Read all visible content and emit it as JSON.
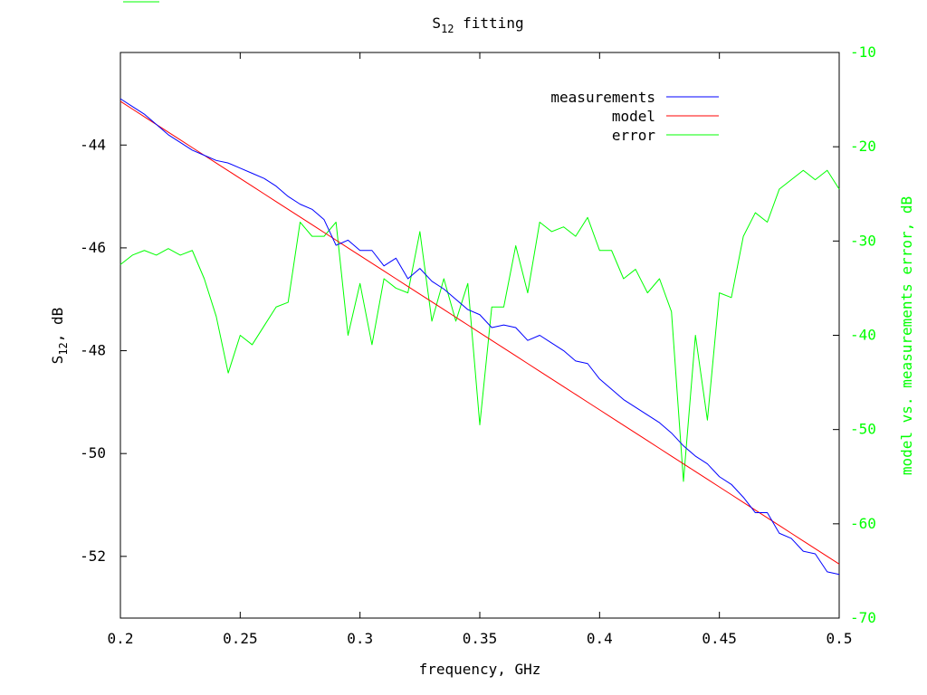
{
  "chart_data": {
    "type": "line",
    "title_main": "S",
    "title_sub": "12",
    "title_rest": " fitting",
    "xlabel": "frequency, GHz",
    "ylabel_main": "S",
    "ylabel_sub": "12",
    "ylabel_rest": ", dB",
    "y2label": "model vs. measurements error, dB",
    "xlim": [
      0.2,
      0.5
    ],
    "ylim": [
      -53.2,
      -42.2
    ],
    "y2lim": [
      -70,
      -10
    ],
    "x_ticks": [
      0.2,
      0.25,
      0.3,
      0.35,
      0.4,
      0.45,
      0.5
    ],
    "x_tick_labels": [
      "0.2",
      "0.25",
      "0.3",
      "0.35",
      "0.4",
      "0.45",
      "0.5"
    ],
    "y_ticks": [
      -44,
      -46,
      -48,
      -50,
      -52
    ],
    "y_tick_labels": [
      "-44",
      "-46",
      "-48",
      "-50",
      "-52"
    ],
    "y2_ticks": [
      -10,
      -20,
      -30,
      -40,
      -50,
      -60,
      -70
    ],
    "y2_tick_labels": [
      "-10",
      "-20",
      "-30",
      "-40",
      "-50",
      "-60",
      "-70"
    ],
    "legend_position": "top-right",
    "grid": false,
    "colors": {
      "measurements": "#0000ff",
      "model": "#ff0000",
      "error": "#00ff00",
      "axes": "#000000",
      "y2_axis": "#00ff00"
    },
    "x": [
      0.2,
      0.205,
      0.21,
      0.215,
      0.22,
      0.225,
      0.23,
      0.235,
      0.24,
      0.245,
      0.25,
      0.255,
      0.26,
      0.265,
      0.27,
      0.275,
      0.28,
      0.285,
      0.29,
      0.295,
      0.3,
      0.305,
      0.31,
      0.315,
      0.32,
      0.325,
      0.33,
      0.335,
      0.34,
      0.345,
      0.35,
      0.355,
      0.36,
      0.365,
      0.37,
      0.375,
      0.38,
      0.385,
      0.39,
      0.395,
      0.4,
      0.405,
      0.41,
      0.415,
      0.42,
      0.425,
      0.43,
      0.435,
      0.44,
      0.445,
      0.45,
      0.455,
      0.46,
      0.465,
      0.47,
      0.475,
      0.48,
      0.485,
      0.49,
      0.495,
      0.5
    ],
    "series": [
      {
        "name": "measurements",
        "axis": "y",
        "values": [
          -43.1,
          -43.25,
          -43.4,
          -43.6,
          -43.8,
          -43.95,
          -44.1,
          -44.2,
          -44.3,
          -44.35,
          -44.45,
          -44.55,
          -44.65,
          -44.8,
          -45.0,
          -45.15,
          -45.25,
          -45.45,
          -45.95,
          -45.85,
          -46.05,
          -46.05,
          -46.35,
          -46.2,
          -46.6,
          -46.4,
          -46.65,
          -46.8,
          -47.0,
          -47.2,
          -47.3,
          -47.55,
          -47.5,
          -47.55,
          -47.8,
          -47.7,
          -47.85,
          -48.0,
          -48.2,
          -48.25,
          -48.55,
          -48.75,
          -48.95,
          -49.1,
          -49.25,
          -49.4,
          -49.6,
          -49.85,
          -50.05,
          -50.2,
          -50.45,
          -50.6,
          -50.85,
          -51.15,
          -51.15,
          -51.55,
          -51.65,
          -51.9,
          -51.95,
          -52.3,
          -52.35
        ]
      },
      {
        "name": "model",
        "axis": "y",
        "values": [
          -43.15,
          -43.3,
          -43.45,
          -43.6,
          -43.75,
          -43.9,
          -44.05,
          -44.2,
          -44.35,
          -44.5,
          -44.65,
          -44.8,
          -44.95,
          -45.1,
          -45.25,
          -45.4,
          -45.55,
          -45.7,
          -45.85,
          -46.0,
          -46.15,
          -46.3,
          -46.45,
          -46.6,
          -46.75,
          -46.9,
          -47.05,
          -47.2,
          -47.35,
          -47.5,
          -47.65,
          -47.8,
          -47.95,
          -48.1,
          -48.25,
          -48.4,
          -48.55,
          -48.7,
          -48.85,
          -49.0,
          -49.15,
          -49.3,
          -49.45,
          -49.6,
          -49.75,
          -49.9,
          -50.05,
          -50.2,
          -50.35,
          -50.5,
          -50.65,
          -50.8,
          -50.95,
          -51.1,
          -51.25,
          -51.4,
          -51.55,
          -51.7,
          -51.85,
          -52.0,
          -52.15
        ]
      },
      {
        "name": "error",
        "axis": "y2",
        "values": [
          -32.5,
          -31.5,
          -31.0,
          -31.5,
          -30.8,
          -31.5,
          -31.0,
          -34.0,
          -38.0,
          -44.0,
          -40.0,
          -41.0,
          -39.0,
          -37.0,
          -36.5,
          -28.0,
          -29.5,
          -29.5,
          -28.0,
          -40.0,
          -34.5,
          -41.0,
          -34.0,
          -35.0,
          -35.5,
          -29.0,
          -38.5,
          -34.0,
          -38.5,
          -34.5,
          -49.5,
          -37.0,
          -37.0,
          -30.5,
          -35.5,
          -28.0,
          -29.0,
          -28.5,
          -29.5,
          -27.5,
          -31.0,
          -31.0,
          -34.0,
          -33.0,
          -35.5,
          -34.0,
          -37.5,
          -55.5,
          -40.0,
          -49.0,
          -35.5,
          -36.0,
          -29.5,
          -27.0,
          -28.0,
          -24.5,
          -23.5,
          -22.5,
          -23.5,
          -22.5,
          -24.5
        ]
      }
    ],
    "legend": [
      {
        "label": "measurements"
      },
      {
        "label": "model"
      },
      {
        "label": "error"
      }
    ]
  }
}
